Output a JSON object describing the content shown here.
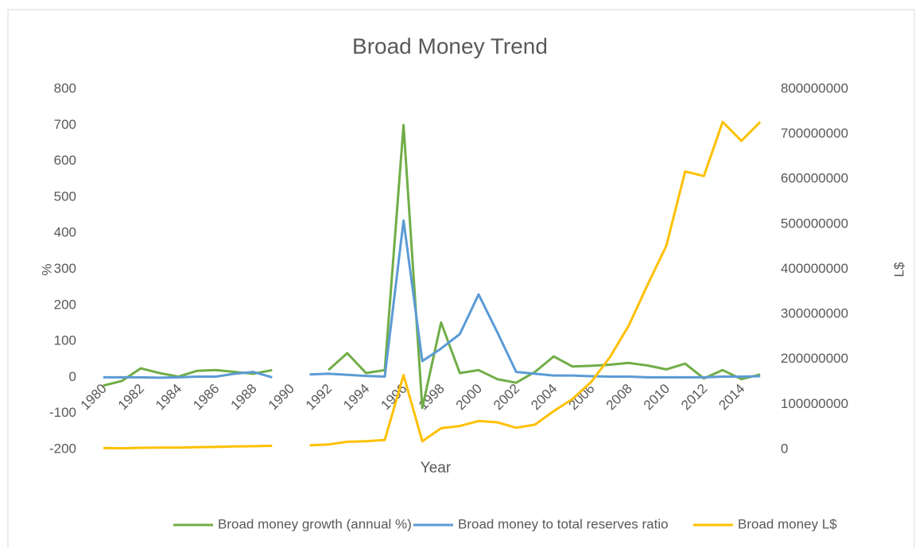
{
  "chart_data": {
    "type": "line",
    "title": "Broad Money Trend",
    "x_label": "Year",
    "y_label": "%",
    "y2_label": "L$",
    "categories": [
      "1980",
      null,
      "1982",
      null,
      "1984",
      null,
      "1986",
      null,
      "1988",
      null,
      "1990",
      null,
      "1992",
      null,
      "1994",
      null,
      "1996",
      null,
      "1998",
      null,
      "2000",
      null,
      "2002",
      null,
      "2004",
      null,
      "2006",
      null,
      "2008",
      null,
      "2010",
      null,
      "2012",
      null,
      "2014",
      null
    ],
    "ylim": [
      -200,
      800
    ],
    "yticks": [
      -200,
      -100,
      0,
      100,
      200,
      300,
      400,
      500,
      600,
      700,
      800
    ],
    "y2lim": [
      0,
      800000000
    ],
    "y2ticks": [
      0,
      100000000,
      200000000,
      300000000,
      400000000,
      500000000,
      600000000,
      700000000,
      800000000
    ],
    "series": [
      {
        "name": "Broad money growth (annual %)",
        "color": "#70ad47",
        "values": [
          -23,
          -10,
          25,
          12,
          2,
          18,
          20,
          15,
          10,
          20,
          null,
          null,
          20,
          67,
          12,
          20,
          700,
          -85,
          152,
          12,
          20,
          -5,
          -15,
          15,
          58,
          30,
          32,
          35,
          40,
          33,
          22,
          38,
          -3,
          20,
          -5,
          8
        ]
      },
      {
        "name": "Broad money to total reserves ratio",
        "color": "#5b9bd5",
        "values": [
          0,
          0,
          0,
          -1,
          0,
          2,
          2,
          10,
          15,
          0,
          null,
          8,
          10,
          7,
          4,
          2,
          435,
          45,
          80,
          120,
          230,
          125,
          15,
          10,
          5,
          5,
          3,
          2,
          2,
          0,
          0,
          0,
          0,
          2,
          2,
          3
        ]
      },
      {
        "name": "Broad money L$",
        "color": "#ffc000",
        "axis": "y2",
        "values": [
          3000000,
          2500000,
          3500000,
          4000000,
          4000000,
          5000000,
          5500000,
          6500000,
          7000000,
          8000000,
          null,
          9000000,
          11000000,
          17000000,
          18000000,
          21000000,
          165000000,
          18000000,
          47000000,
          52000000,
          63000000,
          60000000,
          48000000,
          55000000,
          85000000,
          112000000,
          150000000,
          205000000,
          275000000,
          365000000,
          452000000,
          617000000,
          607000000,
          727000000,
          685000000,
          727000000
        ]
      }
    ]
  }
}
